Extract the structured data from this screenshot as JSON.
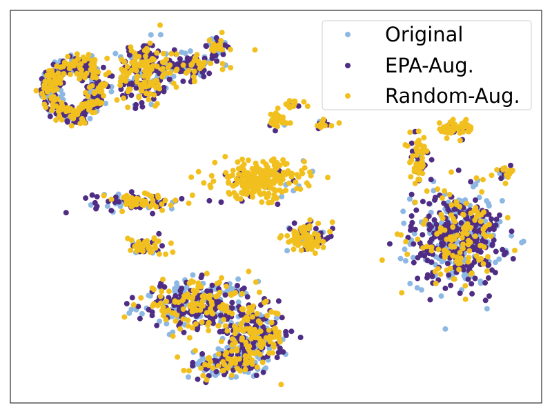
{
  "chart_data": {
    "type": "scatter",
    "title": "",
    "xlabel": "",
    "ylabel": "",
    "xlim": [
      0,
      100
    ],
    "ylim": [
      0,
      100
    ],
    "grid": false,
    "ticks": false,
    "legend_position": "top-right",
    "point_counts": {
      "Original": 700,
      "EPA-Aug.": 1000,
      "Random-Aug.": 1200
    },
    "series": [
      {
        "name": "Original",
        "color": "#8db8e3"
      },
      {
        "name": "EPA-Aug.",
        "color": "#4f2d85"
      },
      {
        "name": "Random-Aug.",
        "color": "#f2c01e"
      }
    ],
    "clusters": [
      {
        "id": "top-left-ring",
        "cx": 12,
        "cy": 80,
        "sx": 6,
        "sy": 9,
        "shape": "ring",
        "weights": [
          0.25,
          0.4,
          0.35
        ]
      },
      {
        "id": "top-left-upper",
        "cx": 25,
        "cy": 84,
        "sx": 4,
        "sy": 7,
        "shape": "blob",
        "weights": [
          0.15,
          0.45,
          0.4
        ]
      },
      {
        "id": "top-strip",
        "cx": 33,
        "cy": 86,
        "sx": 6,
        "sy": 3,
        "shape": "blob",
        "weights": [
          0.25,
          0.5,
          0.25
        ]
      },
      {
        "id": "top-tip",
        "cx": 39,
        "cy": 91,
        "sx": 2,
        "sy": 2,
        "shape": "blob",
        "weights": [
          0.25,
          0.35,
          0.4
        ]
      },
      {
        "id": "mid-left-band",
        "cx": 24,
        "cy": 51,
        "sx": 7,
        "sy": 2,
        "shape": "blob",
        "weights": [
          0.2,
          0.4,
          0.4
        ]
      },
      {
        "id": "small-left",
        "cx": 26,
        "cy": 40,
        "sx": 3,
        "sy": 2,
        "shape": "blob",
        "weights": [
          0.05,
          0.3,
          0.65
        ]
      },
      {
        "id": "center-yellow",
        "cx": 47,
        "cy": 57,
        "sx": 7,
        "sy": 4,
        "shape": "blob",
        "weights": [
          0.03,
          0.07,
          0.9
        ]
      },
      {
        "id": "mid-top-1",
        "cx": 50,
        "cy": 72,
        "sx": 2,
        "sy": 2,
        "shape": "blob",
        "weights": [
          0.02,
          0.08,
          0.9
        ]
      },
      {
        "id": "mid-top-2",
        "cx": 53,
        "cy": 76,
        "sx": 2,
        "sy": 1,
        "shape": "blob",
        "weights": [
          0.05,
          0.15,
          0.8
        ]
      },
      {
        "id": "mid-top-3",
        "cx": 59,
        "cy": 71,
        "sx": 2,
        "sy": 1,
        "shape": "blob",
        "weights": [
          0.05,
          0.45,
          0.5
        ]
      },
      {
        "id": "mid-right-blob",
        "cx": 56,
        "cy": 42,
        "sx": 4,
        "sy": 3,
        "shape": "blob",
        "weights": [
          0.1,
          0.3,
          0.6
        ]
      },
      {
        "id": "lower-left",
        "cx": 35,
        "cy": 25,
        "sx": 9,
        "sy": 5,
        "shape": "blob",
        "weights": [
          0.25,
          0.45,
          0.3
        ]
      },
      {
        "id": "lower-right-band",
        "cx": 46,
        "cy": 17,
        "sx": 5,
        "sy": 6,
        "shape": "blob",
        "weights": [
          0.2,
          0.45,
          0.35
        ]
      },
      {
        "id": "bottom",
        "cx": 41,
        "cy": 10,
        "sx": 6,
        "sy": 3,
        "shape": "blob",
        "weights": [
          0.35,
          0.35,
          0.3
        ]
      },
      {
        "id": "right-top-yellow",
        "cx": 84,
        "cy": 70,
        "sx": 3,
        "sy": 2,
        "shape": "blob",
        "weights": [
          0.02,
          0.2,
          0.78
        ]
      },
      {
        "id": "right-yellow-tail",
        "cx": 77,
        "cy": 62,
        "sx": 1.5,
        "sy": 5,
        "shape": "blob",
        "weights": [
          0.05,
          0.3,
          0.65
        ]
      },
      {
        "id": "right-tip",
        "cx": 93,
        "cy": 59,
        "sx": 1.5,
        "sy": 1.5,
        "shape": "blob",
        "weights": [
          0.1,
          0.3,
          0.6
        ]
      },
      {
        "id": "right-large",
        "cx": 84,
        "cy": 42,
        "sx": 7,
        "sy": 10,
        "shape": "blob",
        "weights": [
          0.3,
          0.5,
          0.2
        ]
      }
    ]
  },
  "legend": {
    "items": [
      {
        "label": "Original",
        "color": "#8db8e3"
      },
      {
        "label": "EPA-Aug.",
        "color": "#4f2d85"
      },
      {
        "label": "Random-Aug.",
        "color": "#f2c01e"
      }
    ]
  }
}
